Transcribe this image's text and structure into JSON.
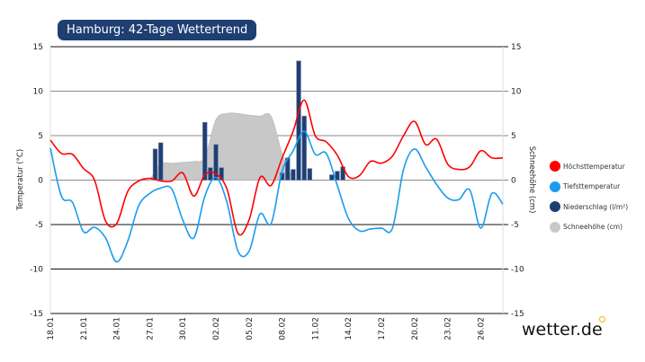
{
  "title": "Hamburg: 42-Tage Wettertrend",
  "logo": "wetter.de",
  "legend": [
    {
      "label": "Höchsttemperatur",
      "color": "#ff0000"
    },
    {
      "label": "Tiefsttemperatur",
      "color": "#1a9bf0"
    },
    {
      "label": "Niederschlag (l/m²)",
      "color": "#1f3f73"
    },
    {
      "label": "Schneehöhe (cm)",
      "color": "#c8c8c8"
    }
  ],
  "chart_data": {
    "type": "line",
    "title": "Hamburg: 42-Tage Wettertrend",
    "ylabel": "Temperatur (°C)",
    "y2label": "Schneehöhe (cm)",
    "ylim": [
      -15,
      15
    ],
    "y2lim": [
      -15,
      15
    ],
    "yticks": [
      15,
      10,
      5,
      0,
      -5,
      -10,
      -15
    ],
    "y2ticks": [
      15,
      10,
      5,
      0,
      -5,
      -10,
      -15
    ],
    "grid": true,
    "legend_position": "right",
    "categories": [
      "18.01",
      "19.01",
      "20.01",
      "21.01",
      "22.01",
      "23.01",
      "24.01",
      "25.01",
      "26.01",
      "27.01",
      "28.01",
      "29.01",
      "30.01",
      "31.01",
      "01.02",
      "02.02",
      "03.02",
      "04.02",
      "05.02",
      "06.02",
      "07.02",
      "08.02",
      "09.02",
      "10.02",
      "11.02",
      "12.02",
      "13.02",
      "14.02",
      "15.02",
      "16.02",
      "17.02",
      "18.02",
      "19.02",
      "20.02",
      "21.02",
      "22.02",
      "23.02",
      "24.02",
      "25.02",
      "26.02",
      "27.02",
      "28.02"
    ],
    "xtick_labels": [
      "18.01",
      "21.01",
      "24.01",
      "27.01",
      "30.01",
      "02.02",
      "05.02",
      "08.02",
      "11.02",
      "14.02",
      "17.02",
      "20.02",
      "23.02",
      "26.02"
    ],
    "series": [
      {
        "name": "Höchsttemperatur",
        "color": "#ff0000",
        "values": [
          4.5,
          3.0,
          2.9,
          1.3,
          0.0,
          -4.6,
          -4.9,
          -1.3,
          -0.1,
          0.2,
          -0.1,
          -0.1,
          0.8,
          -1.8,
          0.6,
          0.7,
          -1.0,
          -6.0,
          -4.5,
          0.3,
          -0.6,
          2.5,
          5.5,
          9.0,
          5.0,
          4.3,
          2.8,
          0.4,
          0.5,
          2.1,
          1.9,
          2.7,
          5.0,
          6.6,
          4.0,
          4.6,
          1.8,
          1.2,
          1.5,
          3.3,
          2.5,
          2.5
        ]
      },
      {
        "name": "Tiefsttemperatur",
        "color": "#1a9bf0",
        "values": [
          3.6,
          -1.8,
          -2.5,
          -5.8,
          -5.3,
          -6.5,
          -9.2,
          -6.9,
          -2.9,
          -1.5,
          -0.9,
          -1.0,
          -4.5,
          -6.5,
          -1.8,
          0.3,
          -2.5,
          -8.0,
          -8.0,
          -3.8,
          -4.9,
          1.0,
          3.3,
          5.5,
          2.9,
          3.0,
          -0.6,
          -4.3,
          -5.7,
          -5.5,
          -5.4,
          -5.4,
          1.2,
          3.5,
          1.5,
          -0.5,
          -2.0,
          -2.2,
          -1.1,
          -5.4,
          -1.5,
          -2.7
        ]
      },
      {
        "name": "Niederschlag (l/m²)",
        "type": "bar",
        "color": "#1f3f73",
        "points": [
          {
            "date": "27.01",
            "hour": 12,
            "value": 3.5
          },
          {
            "date": "28.01",
            "hour": 0,
            "value": 4.2
          },
          {
            "date": "01.02",
            "hour": 0,
            "value": 6.5
          },
          {
            "date": "01.02",
            "hour": 12,
            "value": 1.4
          },
          {
            "date": "02.02",
            "hour": 0,
            "value": 4.0
          },
          {
            "date": "02.02",
            "hour": 12,
            "value": 1.4
          },
          {
            "date": "08.02",
            "hour": 0,
            "value": 0.8
          },
          {
            "date": "08.02",
            "hour": 12,
            "value": 2.5
          },
          {
            "date": "09.02",
            "hour": 0,
            "value": 1.2
          },
          {
            "date": "09.02",
            "hour": 12,
            "value": 13.4
          },
          {
            "date": "10.02",
            "hour": 0,
            "value": 7.2
          },
          {
            "date": "10.02",
            "hour": 12,
            "value": 1.3
          },
          {
            "date": "12.02",
            "hour": 12,
            "value": 0.6
          },
          {
            "date": "13.02",
            "hour": 0,
            "value": 1.0
          },
          {
            "date": "13.02",
            "hour": 12,
            "value": 1.5
          }
        ]
      },
      {
        "name": "Schneehöhe (cm)",
        "type": "area",
        "color": "#c8c8c8",
        "points": [
          {
            "date": "27.01",
            "value": 0
          },
          {
            "date": "28.01",
            "value": 1.8
          },
          {
            "date": "29.01",
            "value": 1.9
          },
          {
            "date": "30.01",
            "value": 2.0
          },
          {
            "date": "31.01",
            "value": 2.1
          },
          {
            "date": "01.02",
            "value": 2.6
          },
          {
            "date": "02.02",
            "value": 6.8
          },
          {
            "date": "03.02",
            "value": 7.5
          },
          {
            "date": "04.02",
            "value": 7.5
          },
          {
            "date": "05.02",
            "value": 7.3
          },
          {
            "date": "06.02",
            "value": 7.2
          },
          {
            "date": "07.02",
            "value": 7.2
          },
          {
            "date": "08.02",
            "value": 3.0
          },
          {
            "date": "09.02",
            "value": 0
          }
        ]
      }
    ]
  }
}
